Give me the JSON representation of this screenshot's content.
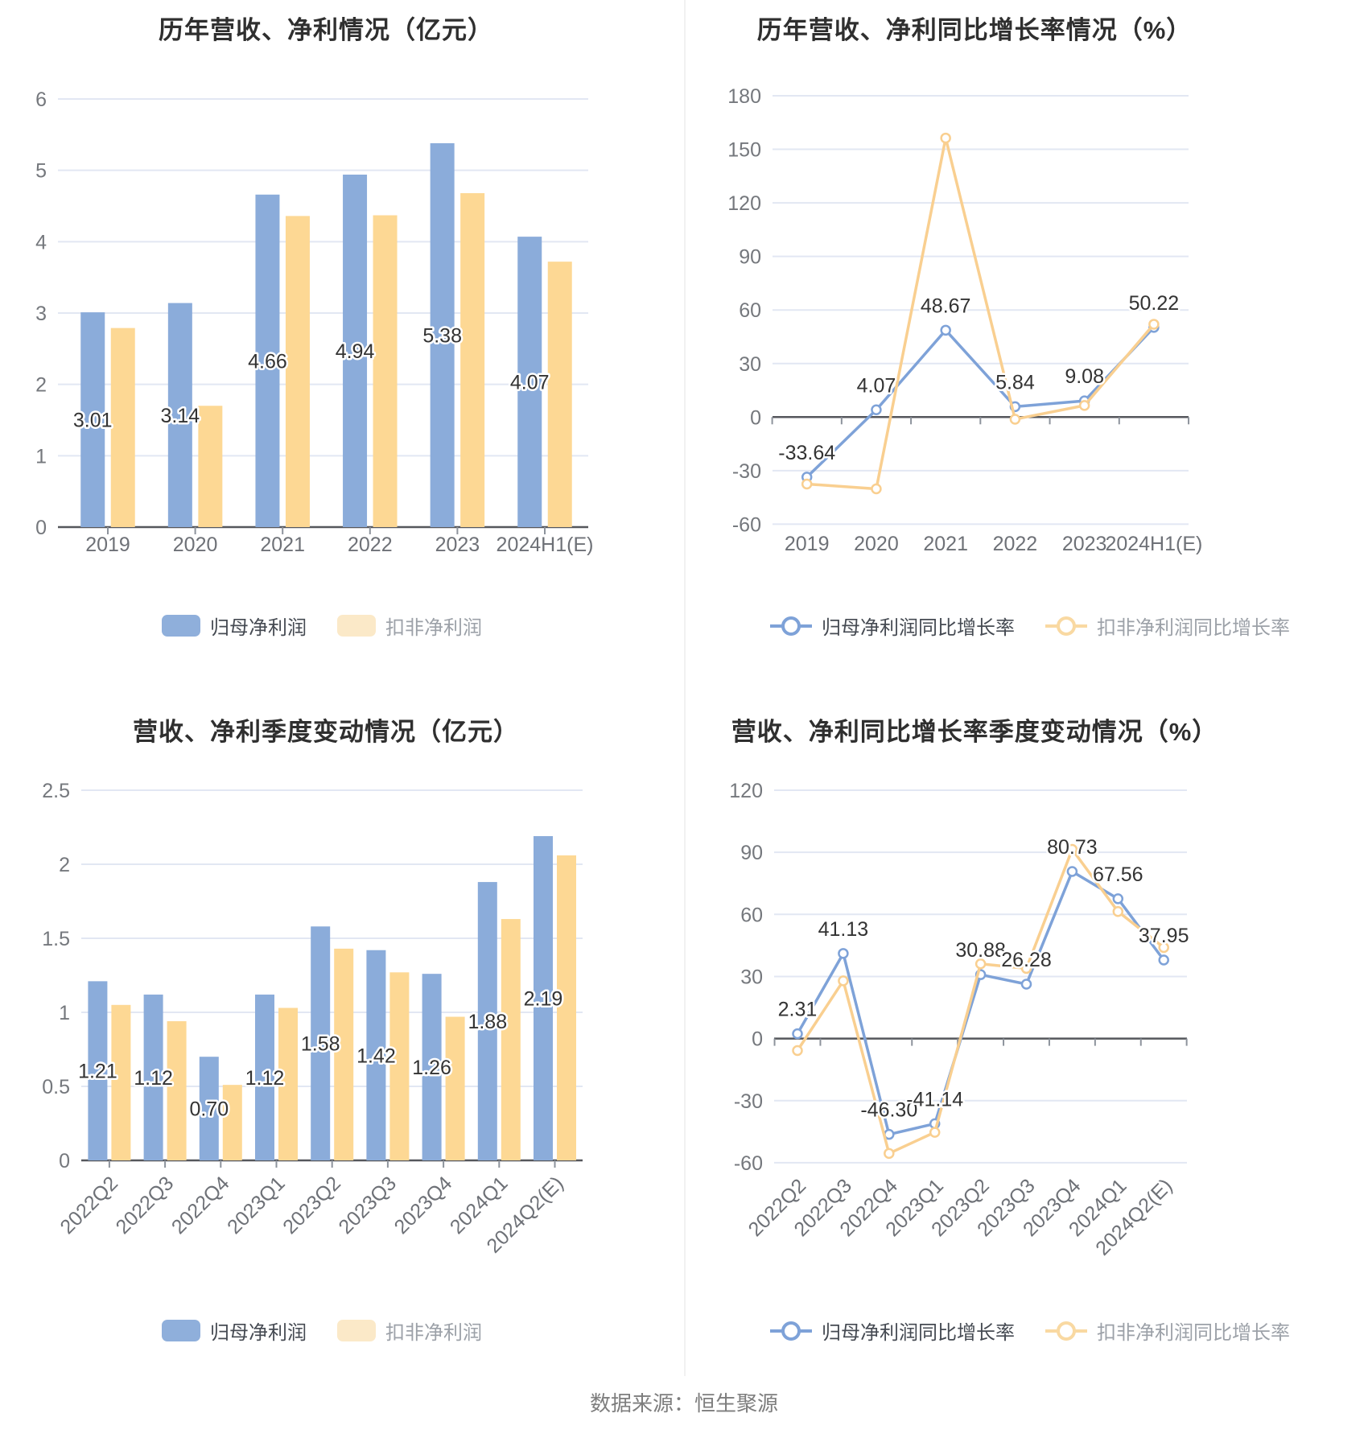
{
  "page": {
    "footer": "数据来源：恒生聚源",
    "background": "#ffffff"
  },
  "colors": {
    "bar_blue": "#8bacda",
    "bar_yellow": "#fdd894",
    "line_blue": "#7ea2d8",
    "line_yellow": "#f9cf90",
    "legend_bar_blue": "#8fafdb",
    "legend_bar_yellow": "#fbe9c8",
    "legend_line_blue": "#7ea2d8",
    "legend_line_yellow": "#f9d9a2",
    "gridline": "#e2e7f3",
    "zero_axis": "#55575c",
    "axis_tick": "#8d939c",
    "data_label": "#333333",
    "title": "#2f2f2f",
    "footer_text": "#7e7e7e"
  },
  "chart_data": [
    {
      "type": "bar",
      "title": "历年营收、净利情况（亿元）",
      "categories": [
        "2019",
        "2020",
        "2021",
        "2022",
        "2023",
        "2024H1(E)"
      ],
      "series": [
        {
          "name": "归母净利润",
          "color": "#8bacda",
          "values": [
            3.01,
            3.14,
            4.66,
            4.94,
            5.38,
            4.07
          ],
          "labels_shown": true
        },
        {
          "name": "扣非净利润",
          "color": "#fdd894",
          "values": [
            2.79,
            1.7,
            4.36,
            4.37,
            4.68,
            3.72
          ],
          "labels_shown": false
        }
      ],
      "ylim": [
        0,
        6
      ],
      "yticks": [
        0,
        1,
        2,
        3,
        4,
        5,
        6
      ],
      "grid": true,
      "legend_position": "bottom",
      "legend": [
        "归母净利润",
        "扣非净利润"
      ]
    },
    {
      "type": "line",
      "title": "历年营收、净利同比增长率情况（%）",
      "categories": [
        "2019",
        "2020",
        "2021",
        "2022",
        "2023",
        "2024H1(E)"
      ],
      "series": [
        {
          "name": "归母净利润同比增长率",
          "color": "#7ea2d8",
          "values": [
            -33.64,
            4.07,
            48.67,
            5.84,
            9.08,
            50.22
          ],
          "labels_shown": true
        },
        {
          "name": "扣非净利润同比增长率",
          "color": "#f9cf90",
          "values": [
            -37.5,
            -40.2,
            156.3,
            -1.2,
            6.5,
            52.0
          ],
          "labels_shown": false
        }
      ],
      "ylim": [
        -60,
        180
      ],
      "yticks": [
        -60,
        -30,
        0,
        30,
        60,
        90,
        120,
        150,
        180
      ],
      "grid": true,
      "legend_position": "bottom",
      "legend": [
        "归母净利润同比增长率",
        "扣非净利润同比增长率"
      ]
    },
    {
      "type": "bar",
      "title": "营收、净利季度变动情况（亿元）",
      "categories": [
        "2022Q2",
        "2022Q3",
        "2022Q4",
        "2023Q1",
        "2023Q2",
        "2023Q3",
        "2023Q4",
        "2024Q1",
        "2024Q2(E)"
      ],
      "series": [
        {
          "name": "归母净利润",
          "color": "#8bacda",
          "values": [
            1.21,
            1.12,
            0.7,
            1.12,
            1.58,
            1.42,
            1.26,
            1.88,
            2.19
          ],
          "labels_shown": true
        },
        {
          "name": "扣非净利润",
          "color": "#fdd894",
          "values": [
            1.05,
            0.94,
            0.51,
            1.03,
            1.43,
            1.27,
            0.97,
            1.63,
            2.06
          ],
          "labels_shown": false
        }
      ],
      "ylim": [
        0,
        2.5
      ],
      "yticks": [
        0,
        0.5,
        1,
        1.5,
        2,
        2.5
      ],
      "grid": true,
      "legend_position": "bottom",
      "legend": [
        "归母净利润",
        "扣非净利润"
      ]
    },
    {
      "type": "line",
      "title": "营收、净利同比增长率季度变动情况（%）",
      "categories": [
        "2022Q2",
        "2022Q3",
        "2022Q4",
        "2023Q1",
        "2023Q2",
        "2023Q3",
        "2023Q4",
        "2024Q1",
        "2024Q2(E)"
      ],
      "series": [
        {
          "name": "归母净利润同比增长率",
          "color": "#7ea2d8",
          "values": [
            2.31,
            41.13,
            -46.3,
            -41.14,
            30.88,
            26.28,
            80.73,
            67.56,
            37.95
          ],
          "labels_shown": true
        },
        {
          "name": "扣非净利润同比增长率",
          "color": "#f9cf90",
          "values": [
            -5.8,
            27.9,
            -55.5,
            -45.3,
            36.1,
            33.9,
            91.4,
            61.4,
            44.0
          ],
          "labels_shown": false
        }
      ],
      "ylim": [
        -60,
        120
      ],
      "yticks": [
        -60,
        -30,
        0,
        30,
        60,
        90,
        120
      ],
      "grid": true,
      "legend_position": "bottom",
      "legend": [
        "归母净利润同比增长率",
        "扣非净利润同比增长率"
      ]
    }
  ]
}
